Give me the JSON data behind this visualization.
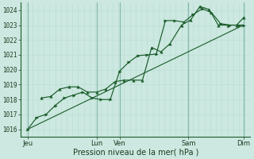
{
  "background_color": "#cce8e0",
  "grid_minor_color": "#b8ddd5",
  "grid_major_color": "#88bbaf",
  "line_color": "#1a5c2a",
  "dark_line_color": "#1a4020",
  "xlim": [
    0,
    10
  ],
  "ylim": [
    1015.5,
    1024.5
  ],
  "yticks": [
    1016,
    1017,
    1018,
    1019,
    1020,
    1021,
    1022,
    1023,
    1024
  ],
  "x_major_ticks": [
    0.3,
    3.3,
    4.3,
    7.3,
    9.7
  ],
  "x_tick_labels": [
    "Jeu",
    "Lun",
    "Ven",
    "Sam",
    "Dim"
  ],
  "x_vlines": [
    0.3,
    3.3,
    4.3,
    7.3,
    9.7
  ],
  "xlabel": "Pression niveau de la mer( hPa )",
  "line1_x": [
    0.3,
    0.7,
    1.1,
    1.5,
    1.9,
    2.3,
    2.7,
    3.1,
    3.5,
    3.9,
    4.3,
    4.7,
    5.1,
    5.5,
    5.9,
    6.3,
    6.7,
    7.1,
    7.5,
    7.9,
    8.3,
    8.7,
    9.1,
    9.5,
    9.7
  ],
  "line1_y": [
    1016.0,
    1016.8,
    1017.0,
    1017.6,
    1018.1,
    1018.3,
    1018.5,
    1018.1,
    1018.0,
    1018.0,
    1019.9,
    1020.5,
    1020.95,
    1021.0,
    1021.05,
    1023.3,
    1023.3,
    1023.2,
    1023.7,
    1024.1,
    1023.85,
    1023.1,
    1023.0,
    1023.0,
    1023.0
  ],
  "line2_x": [
    0.9,
    1.3,
    1.7,
    2.1,
    2.5,
    2.9,
    3.3,
    3.7,
    4.1,
    4.5,
    4.9,
    5.3,
    5.7,
    6.1,
    6.5,
    7.0,
    7.4,
    7.8,
    8.2,
    8.6,
    9.0,
    9.4,
    9.7
  ],
  "line2_y": [
    1018.1,
    1018.2,
    1018.7,
    1018.85,
    1018.85,
    1018.5,
    1018.5,
    1018.7,
    1019.2,
    1019.3,
    1019.3,
    1019.3,
    1021.5,
    1021.2,
    1021.75,
    1023.0,
    1023.35,
    1024.25,
    1024.05,
    1023.0,
    1023.0,
    1023.0,
    1023.5
  ],
  "trend_x": [
    0.3,
    9.7
  ],
  "trend_y": [
    1016.0,
    1023.0
  ]
}
